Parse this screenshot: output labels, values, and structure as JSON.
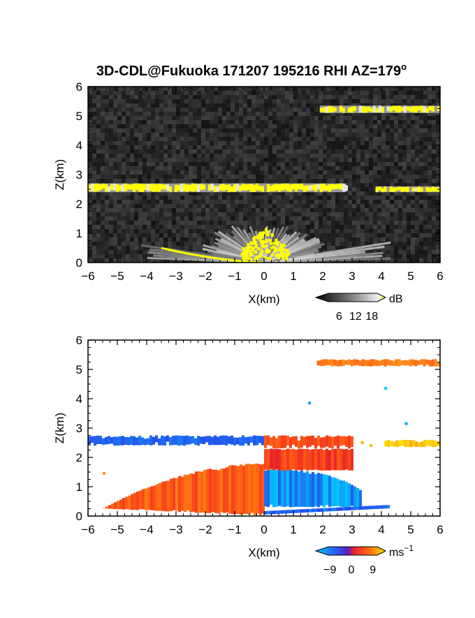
{
  "figure": {
    "title": "3D-CDL@Fukuoka 171207 195216 RHI AZ=179",
    "title_sup": "o"
  },
  "colors": {
    "echo_yellow": "#ffff00",
    "noise_background": "#2b2b2b",
    "velocity_negative": "#1e5be8",
    "velocity_zero": "#e8232a",
    "velocity_positive": "#ffe100"
  },
  "chart_data": [
    {
      "type": "heatmap",
      "name": "backscatter",
      "xlabel": "X(km)",
      "ylabel": "Z(km)",
      "xlim": [
        -6,
        6
      ],
      "ylim": [
        0,
        6
      ],
      "xticks": [
        "-6",
        "-5",
        "-4",
        "-3",
        "-2",
        "-1",
        "0",
        "1",
        "2",
        "3",
        "4",
        "5",
        "6"
      ],
      "yticks": [
        "0",
        "1",
        "2",
        "3",
        "4",
        "5",
        "6"
      ],
      "colorbar": {
        "unit": "dB",
        "ticks": [
          "6",
          "12",
          "18"
        ],
        "range": [
          0,
          21
        ]
      },
      "features": [
        {
          "kind": "layer",
          "x": [
            -6,
            2.8
          ],
          "z": [
            2.4,
            2.7
          ],
          "value_db": 20
        },
        {
          "kind": "layer",
          "x": [
            3.8,
            6
          ],
          "z": [
            2.4,
            2.6
          ],
          "value_db": 17
        },
        {
          "kind": "layer",
          "x": [
            1.9,
            6
          ],
          "z": [
            5.1,
            5.35
          ],
          "value_db": 18
        },
        {
          "kind": "fan",
          "apex": [
            0,
            0
          ],
          "reach_km": 2.2,
          "value_db": 10
        },
        {
          "kind": "ground",
          "x": [
            -3.5,
            0
          ],
          "value_db": 20
        }
      ]
    },
    {
      "type": "heatmap",
      "name": "doppler_velocity",
      "xlabel": "X(km)",
      "ylabel": "Z(km)",
      "xlim": [
        -6,
        6
      ],
      "ylim": [
        0,
        6
      ],
      "xticks": [
        "-6",
        "-5",
        "-4",
        "-3",
        "-2",
        "-1",
        "0",
        "1",
        "2",
        "3",
        "4",
        "5",
        "6"
      ],
      "yticks": [
        "0",
        "1",
        "2",
        "3",
        "4",
        "5",
        "6"
      ],
      "colorbar": {
        "unit": "ms",
        "unit_sup": "−1",
        "ticks": [
          "−9",
          "0",
          "9"
        ],
        "range": [
          -12,
          12
        ]
      },
      "features": [
        {
          "kind": "layer",
          "x": [
            -6,
            0
          ],
          "z": [
            2.4,
            2.75
          ],
          "velocity": -8
        },
        {
          "kind": "layer",
          "x": [
            0,
            3
          ],
          "z": [
            2.3,
            2.75
          ],
          "velocity": 3
        },
        {
          "kind": "layer",
          "x": [
            4.1,
            6
          ],
          "z": [
            2.35,
            2.6
          ],
          "velocity": 10
        },
        {
          "kind": "layer",
          "x": [
            1.8,
            6
          ],
          "z": [
            5.1,
            5.35
          ],
          "velocity": 6
        },
        {
          "kind": "region",
          "x": [
            -5.5,
            0
          ],
          "z": [
            0,
            1.8
          ],
          "velocity": 4
        },
        {
          "kind": "region",
          "x": [
            0,
            3.3
          ],
          "z": [
            0.3,
            1.6
          ],
          "velocity": -10
        },
        {
          "kind": "region",
          "x": [
            0,
            3
          ],
          "z": [
            1.55,
            2.3
          ],
          "velocity": 2
        }
      ]
    }
  ]
}
